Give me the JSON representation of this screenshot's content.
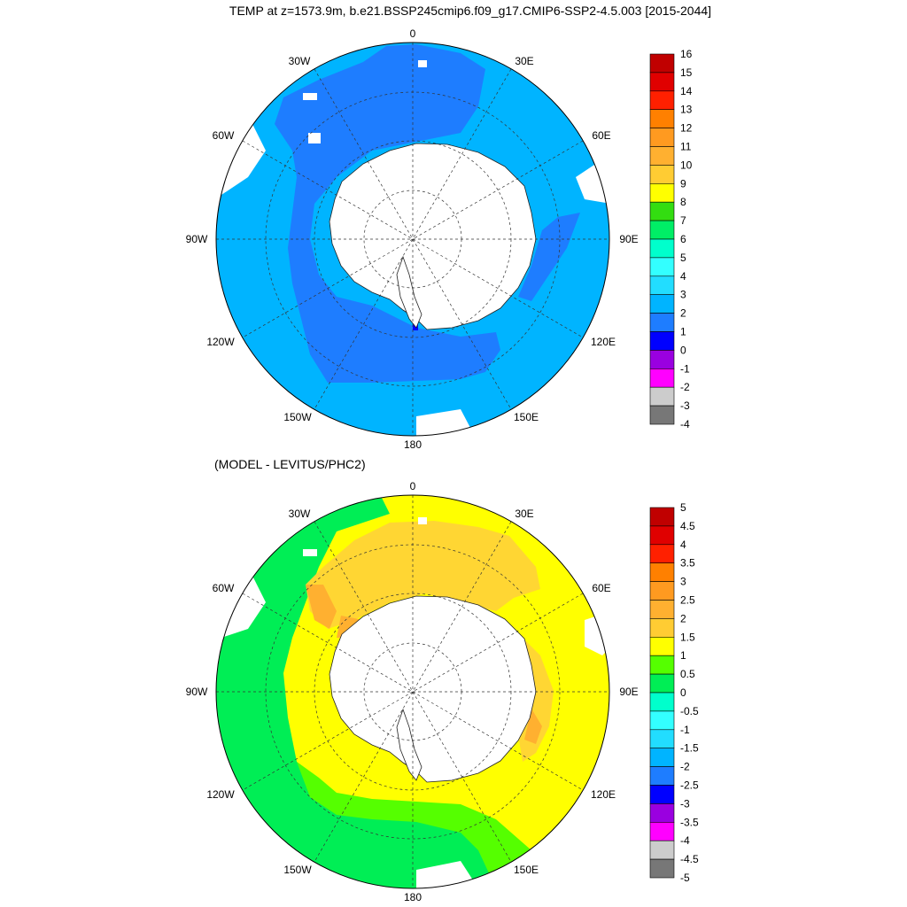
{
  "figure": {
    "main_title": "TEMP at z=1573.9m, b.e21.BSSP245cmip6.f09_g17.CMIP6-SSP2-4.5.003 [2015-2044]",
    "diff_title": "(MODEL - LEVITUS/PHC2)"
  },
  "map_labels": {
    "lon_0": "0",
    "lon_30e": "30E",
    "lon_60e": "60E",
    "lon_90e": "90E",
    "lon_120e": "120E",
    "lon_150e": "150E",
    "lon_180": "180",
    "lon_150w": "150W",
    "lon_120w": "120W",
    "lon_90w": "90W",
    "lon_60w": "60W",
    "lon_30w": "30W"
  },
  "colorbar_top": {
    "labels": [
      "16",
      "15",
      "14",
      "13",
      "12",
      "11",
      "10",
      "9",
      "8",
      "7",
      "6",
      "5",
      "4",
      "3",
      "2",
      "1",
      "0",
      "-1",
      "-2",
      "-3",
      "-4"
    ],
    "colors": [
      "#c00000",
      "#e00000",
      "#ff2000",
      "#ff8000",
      "#ff9a20",
      "#ffb030",
      "#ffcc33",
      "#ffff00",
      "#33dd11",
      "#00ee66",
      "#00ffcc",
      "#33ffff",
      "#22ddff",
      "#00b4ff",
      "#1e7dff",
      "#0000ff",
      "#9a00e0",
      "#ff00ff",
      "#cccccc",
      "#777777"
    ]
  },
  "colorbar_bottom": {
    "labels": [
      "5",
      "4.5",
      "4",
      "3.5",
      "3",
      "2.5",
      "2",
      "1.5",
      "1",
      "0.5",
      "0",
      "-0.5",
      "-1",
      "-1.5",
      "-2",
      "-2.5",
      "-3",
      "-3.5",
      "-4",
      "-4.5",
      "-5"
    ],
    "colors": [
      "#c00000",
      "#e00000",
      "#ff2000",
      "#ff8000",
      "#ff9a20",
      "#ffb030",
      "#ffcc33",
      "#ffff00",
      "#55ff00",
      "#00ee55",
      "#00ffcc",
      "#33ffff",
      "#22ddff",
      "#00b4ff",
      "#1e7dff",
      "#0000ff",
      "#9a00e0",
      "#ff00ff",
      "#cccccc",
      "#777777"
    ]
  },
  "map_colors": {
    "ocean_top_main": "#00b4ff",
    "ocean_top_deep": "#1e7dff",
    "ocean_top_cold": "#0000ff",
    "land": "#ffffff",
    "diff_yellow": "#ffff00",
    "diff_gold": "#ffd633",
    "diff_orange": "#ffb030",
    "diff_green": "#00ee55",
    "diff_lime": "#55ff00"
  }
}
